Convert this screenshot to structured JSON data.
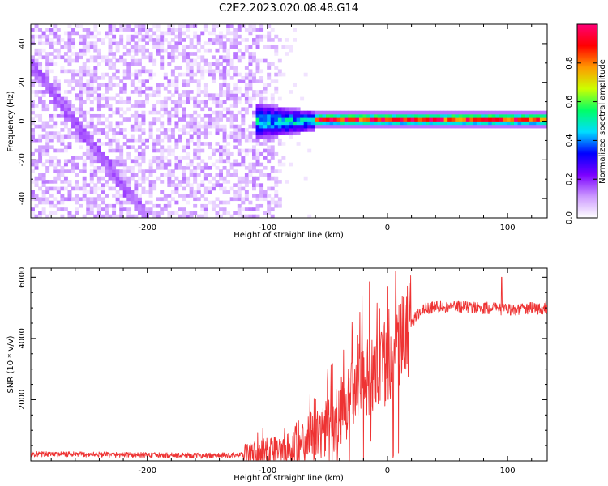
{
  "title": "C2E2.2023.020.08.48.G14",
  "chart_data": [
    {
      "type": "heatmap",
      "name": "spectrogram",
      "xlabel": "Height of straight line (km)",
      "ylabel": "Frequency (Hz)",
      "xlim": [
        -297,
        133
      ],
      "ylim": [
        -50,
        50
      ],
      "xticks": [
        -200,
        -100,
        0,
        100
      ],
      "xtick_labels": [
        "-200",
        "-100",
        "0",
        "100"
      ],
      "yticks": [
        -40,
        -20,
        0,
        20,
        40
      ],
      "ytick_labels": [
        "-40",
        "-20",
        "0",
        "20",
        "40"
      ],
      "colorbar": {
        "label": "Normalized spectral amplitude",
        "range": [
          0,
          1
        ],
        "ticks": [
          0.0,
          0.2,
          0.4,
          0.6,
          0.8
        ],
        "tick_labels": [
          "0.0",
          "0.2",
          "0.4",
          "0.6",
          "0.8"
        ],
        "colors": [
          "#ffffff",
          "#cc99ff",
          "#7b00ff",
          "#0000ff",
          "#00ddff",
          "#00ff66",
          "#ccff00",
          "#ff9900",
          "#ff0000",
          "#ff0077"
        ]
      },
      "features": [
        {
          "x_range": [
            -297,
            -85
          ],
          "freq_range": [
            -50,
            50
          ],
          "amplitude": 0.05
        },
        {
          "x_range": [
            -297,
            -200
          ],
          "freq_start": 30,
          "freq_end": -50,
          "amplitude": 0.1
        },
        {
          "x_range": [
            -110,
            -60
          ],
          "freq_center": 0,
          "freq_halfwidth": 10,
          "amplitude": 0.4
        },
        {
          "x_range": [
            -60,
            133
          ],
          "freq_center": 1,
          "freq_halfwidth": 3,
          "amplitude": 0.75
        }
      ]
    },
    {
      "type": "line",
      "name": "snr",
      "xlabel": "Height of straight line (km)",
      "ylabel": "SNR (10 * v/v)",
      "xlim": [
        -297,
        133
      ],
      "ylim": [
        0,
        6300
      ],
      "xticks": [
        -200,
        -100,
        0,
        100
      ],
      "xtick_labels": [
        "-200",
        "-100",
        "0",
        "100"
      ],
      "yticks": [
        2000,
        4000,
        6000
      ],
      "ytick_labels": [
        "2000",
        "4000",
        "6000"
      ],
      "color": "#ee3333",
      "x": [
        -297,
        -250,
        -200,
        -150,
        -120,
        -100,
        -90,
        -80,
        -70,
        -60,
        -50,
        -40,
        -30,
        -20,
        -10,
        0,
        5,
        10,
        15,
        20,
        25,
        30,
        40,
        60,
        80,
        100,
        120,
        133
      ],
      "y": [
        220,
        210,
        190,
        170,
        190,
        250,
        400,
        500,
        700,
        900,
        1100,
        1500,
        2000,
        2500,
        2900,
        3200,
        3500,
        3800,
        4200,
        4500,
        4800,
        4950,
        5050,
        5050,
        5000,
        4950,
        4980,
        5000
      ],
      "spikes": [
        [
          -15,
          5850
        ],
        [
          7,
          6200
        ],
        [
          -5,
          4200
        ],
        [
          95,
          6000
        ],
        [
          -25,
          4100
        ],
        [
          -30,
          3200
        ]
      ]
    }
  ]
}
